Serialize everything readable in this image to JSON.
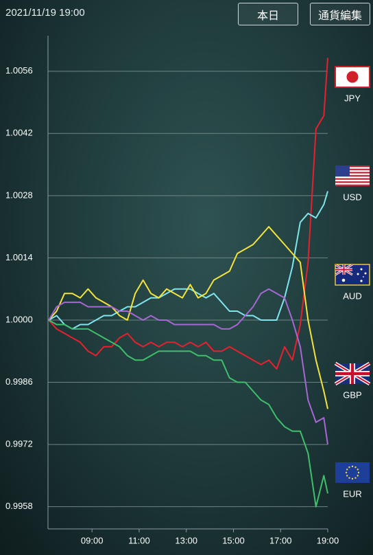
{
  "header": {
    "datetime": "2021/11/19 19:00",
    "today_button": "本日",
    "edit_button": "通貨編集"
  },
  "chart_data": {
    "type": "line",
    "x": [
      "07:10",
      "07:30",
      "07:50",
      "08:10",
      "08:30",
      "08:50",
      "09:10",
      "09:30",
      "09:50",
      "10:10",
      "10:30",
      "10:50",
      "11:10",
      "11:30",
      "11:50",
      "12:10",
      "12:30",
      "12:50",
      "13:10",
      "13:30",
      "13:50",
      "14:10",
      "14:30",
      "14:50",
      "15:10",
      "15:30",
      "15:50",
      "16:10",
      "16:30",
      "16:50",
      "17:10",
      "17:30",
      "17:50",
      "18:10",
      "18:30",
      "18:50",
      "19:00"
    ],
    "xlim": [
      "07:08",
      "19:00"
    ],
    "xticks": [
      "09:00",
      "11:00",
      "13:00",
      "15:00",
      "17:00",
      "19:00"
    ],
    "ylim": [
      0.9953,
      1.0064
    ],
    "yticks": [
      0.9958,
      0.9972,
      0.9986,
      {
        "value": 1,
        "label": "1.0000"
      },
      1.0014,
      1.0028,
      1.0042,
      1.0056
    ],
    "grid": true,
    "series": [
      {
        "name": "JPY",
        "color": "#e8202e",
        "values": [
          1.0,
          0.9998,
          0.9997,
          0.9996,
          0.9995,
          0.9993,
          0.9992,
          0.9994,
          0.9994,
          0.9996,
          0.9997,
          0.9995,
          0.9994,
          0.9995,
          0.9994,
          0.9995,
          0.9995,
          0.9994,
          0.9995,
          0.9994,
          0.9995,
          0.9993,
          0.9993,
          0.9994,
          0.9993,
          0.9992,
          0.9991,
          0.999,
          0.9991,
          0.9989,
          0.9994,
          0.9991,
          0.9999,
          1.0013,
          1.0043,
          1.0046,
          1.0059
        ]
      },
      {
        "name": "USD",
        "color": "#7fe6ef",
        "values": [
          1.0,
          1.0001,
          0.9999,
          0.9998,
          0.9999,
          0.9999,
          1.0,
          1.0001,
          1.0001,
          1.0002,
          1.0003,
          1.0003,
          1.0004,
          1.0005,
          1.0005,
          1.0006,
          1.0007,
          1.0007,
          1.0007,
          1.0006,
          1.0005,
          1.0006,
          1.0004,
          1.0002,
          1.0002,
          1.0001,
          1.0001,
          1.0,
          1.0,
          1.0,
          1.0005,
          1.0012,
          1.0022,
          1.0024,
          1.0023,
          1.0026,
          1.0029
        ]
      },
      {
        "name": "AUD",
        "color": "#f4e43a",
        "values": [
          1.0,
          1.0002,
          1.0006,
          1.0006,
          1.0005,
          1.0007,
          1.0005,
          1.0004,
          1.0003,
          1.0001,
          1.0,
          1.0006,
          1.0009,
          1.0006,
          1.0005,
          1.0007,
          1.0006,
          1.0005,
          1.0008,
          1.0005,
          1.0006,
          1.0009,
          1.001,
          1.0011,
          1.0015,
          1.0016,
          1.0017,
          1.0019,
          1.0021,
          1.0019,
          1.0017,
          1.0015,
          1.0013,
          1.0,
          0.9991,
          0.9984,
          0.998
        ]
      },
      {
        "name": "GBP",
        "color": "#a767d4",
        "values": [
          1.0,
          1.0003,
          1.0004,
          1.0004,
          1.0004,
          1.0003,
          1.0003,
          1.0003,
          1.0003,
          1.0002,
          1.0002,
          1.0001,
          1.0,
          1.0001,
          1.0,
          1.0,
          0.9999,
          0.9999,
          0.9999,
          0.9999,
          0.9999,
          0.9999,
          0.9998,
          0.9998,
          0.9999,
          1.0001,
          1.0003,
          1.0006,
          1.0007,
          1.0006,
          1.0005,
          1.0,
          0.9994,
          0.9982,
          0.9977,
          0.9978,
          0.9972
        ]
      },
      {
        "name": "EUR",
        "color": "#3fbf6a",
        "values": [
          1.0,
          0.9999,
          0.9999,
          0.9998,
          0.9998,
          0.9998,
          0.9997,
          0.9996,
          0.9995,
          0.9994,
          0.9992,
          0.9991,
          0.9991,
          0.9992,
          0.9993,
          0.9993,
          0.9993,
          0.9993,
          0.9993,
          0.9992,
          0.9992,
          0.9991,
          0.9991,
          0.9987,
          0.9986,
          0.9986,
          0.9984,
          0.9982,
          0.9981,
          0.9978,
          0.9976,
          0.9975,
          0.9975,
          0.997,
          0.9958,
          0.9965,
          0.9961
        ]
      }
    ]
  }
}
